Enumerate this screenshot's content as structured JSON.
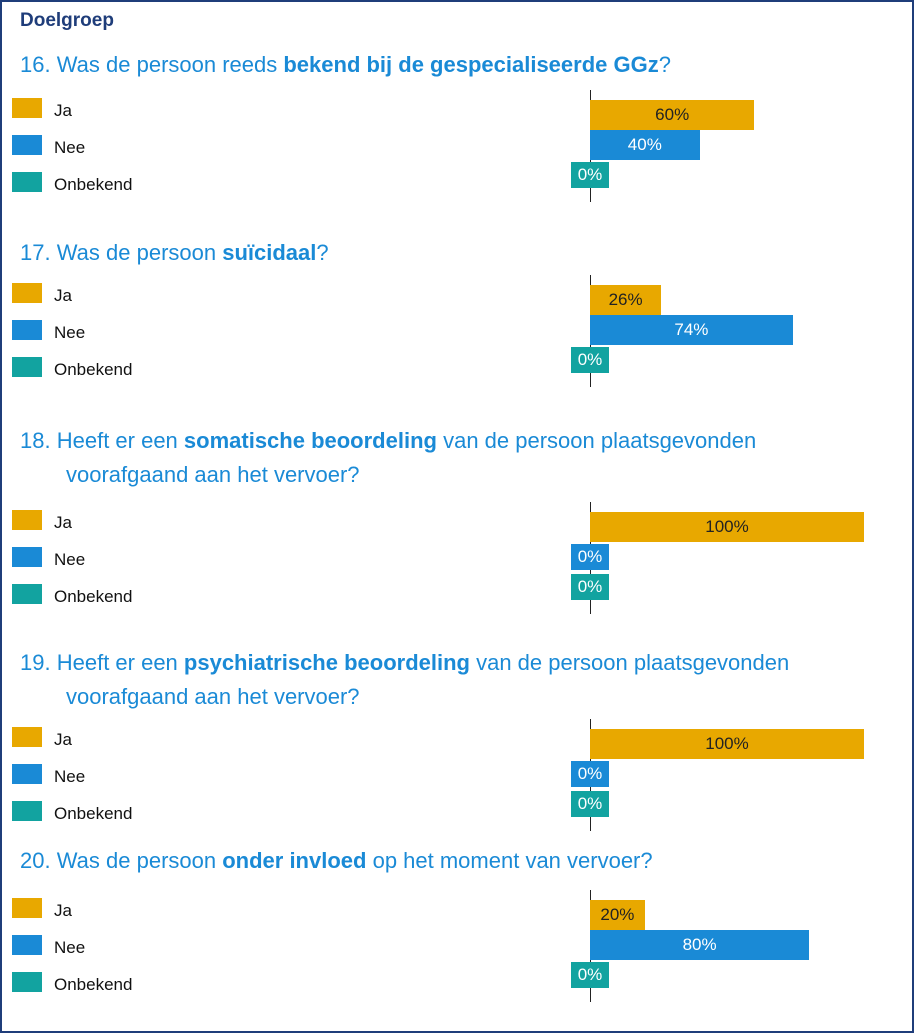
{
  "header": {
    "title": "Doelgroep"
  },
  "chart_data": [
    {
      "type": "bar",
      "number": "16.",
      "title": [
        {
          "text": "Was de persoon reeds ",
          "bold": false
        },
        {
          "text": "bekend bij de gespecialiseerde GGz",
          "bold": true
        },
        {
          "text": "?",
          "bold": false
        }
      ],
      "categories": [
        "Ja",
        "Nee",
        "Onbekend"
      ],
      "colors": [
        "#e8a800",
        "#1a8ad6",
        "#12a3a0"
      ],
      "values": [
        60,
        40,
        0
      ],
      "value_labels": [
        "60%",
        "40%",
        "0%"
      ],
      "xlim": [
        0,
        100
      ]
    },
    {
      "type": "bar",
      "number": "17.",
      "title": [
        {
          "text": "Was de persoon ",
          "bold": false
        },
        {
          "text": "suïcidaal",
          "bold": true
        },
        {
          "text": "?",
          "bold": false
        }
      ],
      "categories": [
        "Ja",
        "Nee",
        "Onbekend"
      ],
      "colors": [
        "#e8a800",
        "#1a8ad6",
        "#12a3a0"
      ],
      "values": [
        26,
        74,
        0
      ],
      "value_labels": [
        "26%",
        "74%",
        "0%"
      ],
      "xlim": [
        0,
        100
      ]
    },
    {
      "type": "bar",
      "number": "18.",
      "title": [
        {
          "text": "Heeft er een ",
          "bold": false
        },
        {
          "text": "somatische beoordeling",
          "bold": true
        },
        {
          "text": " van de persoon plaatsgevonden voorafgaand aan het vervoer?",
          "bold": false
        }
      ],
      "categories": [
        "Ja",
        "Nee",
        "Onbekend"
      ],
      "colors": [
        "#e8a800",
        "#1a8ad6",
        "#12a3a0"
      ],
      "values": [
        100,
        0,
        0
      ],
      "value_labels": [
        "100%",
        "0%",
        "0%"
      ],
      "xlim": [
        0,
        100
      ]
    },
    {
      "type": "bar",
      "number": "19.",
      "title": [
        {
          "text": "Heeft er een ",
          "bold": false
        },
        {
          "text": "psychiatrische beoordeling",
          "bold": true
        },
        {
          "text": " van de persoon plaatsgevonden voorafgaand aan het vervoer?",
          "bold": false
        }
      ],
      "categories": [
        "Ja",
        "Nee",
        "Onbekend"
      ],
      "colors": [
        "#e8a800",
        "#1a8ad6",
        "#12a3a0"
      ],
      "values": [
        100,
        0,
        0
      ],
      "value_labels": [
        "100%",
        "0%",
        "0%"
      ],
      "xlim": [
        0,
        100
      ]
    },
    {
      "type": "bar",
      "number": "20.",
      "title": [
        {
          "text": "Was de persoon ",
          "bold": false
        },
        {
          "text": "onder invloed",
          "bold": true
        },
        {
          "text": " op het moment van vervoer?",
          "bold": false
        }
      ],
      "categories": [
        "Ja",
        "Nee",
        "Onbekend"
      ],
      "colors": [
        "#e8a800",
        "#1a8ad6",
        "#12a3a0"
      ],
      "values": [
        20,
        80,
        0
      ],
      "value_labels": [
        "20%",
        "80%",
        "0%"
      ],
      "xlim": [
        0,
        100
      ]
    }
  ]
}
